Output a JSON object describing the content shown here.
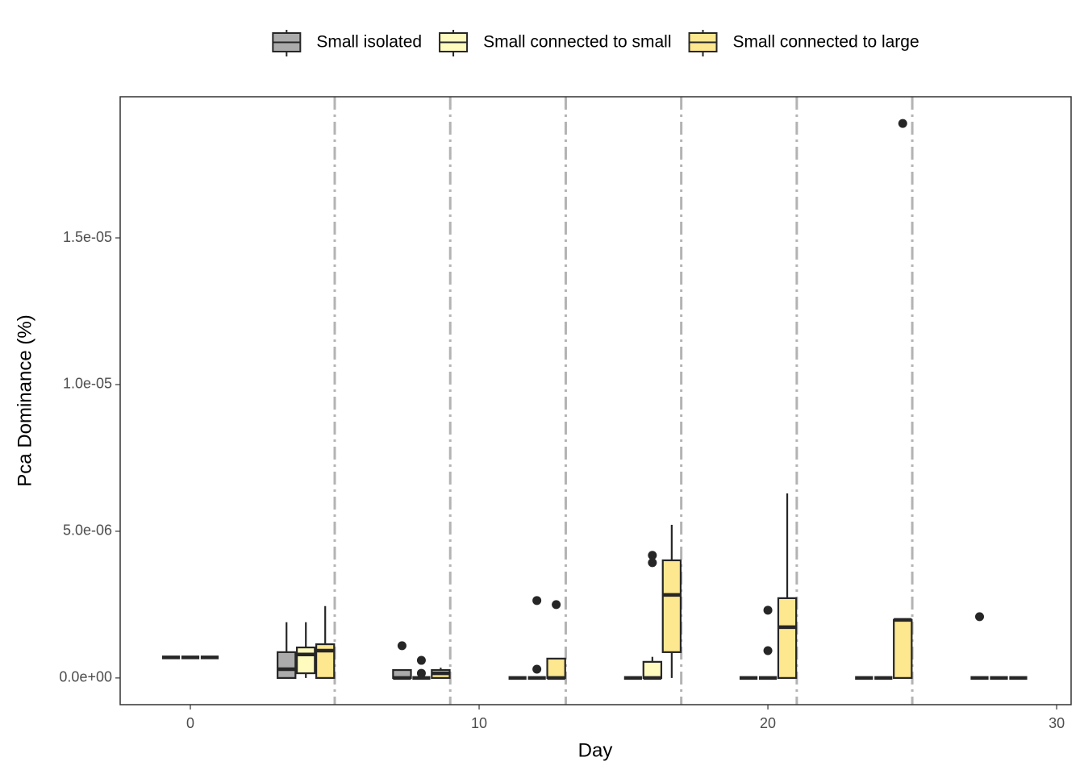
{
  "chart_data": {
    "type": "boxplot",
    "x_label": "Day",
    "y_label": "Pca Dominance (%)",
    "xlim": [
      -2.43,
      30.5
    ],
    "ylim": [
      -9.1e-07,
      1.981e-05
    ],
    "xticks": [
      0,
      10,
      20,
      30
    ],
    "yticks": [
      {
        "value": 0,
        "label": "0.0e+00"
      },
      {
        "value": 5e-06,
        "label": "5.0e-06"
      },
      {
        "value": 1e-05,
        "label": "1.0e-05"
      },
      {
        "value": 1.5e-05,
        "label": "1.5e-05"
      }
    ],
    "vlines": [
      5,
      9,
      13,
      17,
      21,
      25
    ],
    "legend": "top",
    "series": [
      {
        "name": "Small isolated",
        "color": "#ababab",
        "boxes": [
          {
            "x": 0,
            "whislo": 7e-07,
            "q1": 7e-07,
            "med": 7e-07,
            "q3": 7e-07,
            "whishi": 7e-07,
            "fliers": []
          },
          {
            "x": 4,
            "whislo": 0,
            "q1": 0,
            "med": 3e-07,
            "q3": 8.8e-07,
            "whishi": 1.9e-06,
            "fliers": []
          },
          {
            "x": 8,
            "whislo": 0,
            "q1": 0,
            "med": 0,
            "q3": 2.7e-07,
            "whishi": 2.7e-07,
            "fliers": [
              1.1e-06
            ]
          },
          {
            "x": 12,
            "whislo": 0,
            "q1": 0,
            "med": 0,
            "q3": 0,
            "whishi": 0,
            "fliers": []
          },
          {
            "x": 16,
            "whislo": 0,
            "q1": 0,
            "med": 0,
            "q3": 0,
            "whishi": 0,
            "fliers": []
          },
          {
            "x": 20,
            "whislo": 0,
            "q1": 0,
            "med": 0,
            "q3": 0,
            "whishi": 0,
            "fliers": []
          },
          {
            "x": 24,
            "whislo": 0,
            "q1": 0,
            "med": 0,
            "q3": 0,
            "whishi": 0,
            "fliers": []
          },
          {
            "x": 28,
            "whislo": 0,
            "q1": 0,
            "med": 0,
            "q3": 0,
            "whishi": 0,
            "fliers": [
              2.09e-06
            ]
          }
        ]
      },
      {
        "name": "Small connected to small",
        "color": "#fffbbf",
        "boxes": [
          {
            "x": 0,
            "whislo": 7e-07,
            "q1": 7e-07,
            "med": 7e-07,
            "q3": 7e-07,
            "whishi": 7e-07,
            "fliers": []
          },
          {
            "x": 4,
            "whislo": 0,
            "q1": 1.6e-07,
            "med": 8e-07,
            "q3": 1.04e-06,
            "whishi": 1.9e-06,
            "fliers": []
          },
          {
            "x": 8,
            "whislo": 0,
            "q1": 0,
            "med": 0,
            "q3": 0,
            "whishi": 0,
            "fliers": [
              6e-07,
              1.6e-07
            ]
          },
          {
            "x": 12,
            "whislo": 0,
            "q1": 0,
            "med": 0,
            "q3": 0,
            "whishi": 0,
            "fliers": [
              2.64e-06,
              3e-07
            ]
          },
          {
            "x": 16,
            "whislo": 0,
            "q1": 0,
            "med": 0,
            "q3": 5.5e-07,
            "whishi": 7.2e-07,
            "fliers": [
              4.18e-06,
              3.93e-06
            ]
          },
          {
            "x": 20,
            "whislo": 0,
            "q1": 0,
            "med": 0,
            "q3": 0,
            "whishi": 0,
            "fliers": [
              2.31e-06,
              9.3e-07
            ]
          },
          {
            "x": 24,
            "whislo": 0,
            "q1": 0,
            "med": 0,
            "q3": 0,
            "whishi": 0,
            "fliers": []
          },
          {
            "x": 28,
            "whislo": 0,
            "q1": 0,
            "med": 0,
            "q3": 0,
            "whishi": 0,
            "fliers": []
          }
        ]
      },
      {
        "name": "Small connected to large",
        "color": "#fde78f",
        "boxes": [
          {
            "x": 0,
            "whislo": 7e-07,
            "q1": 7e-07,
            "med": 7e-07,
            "q3": 7e-07,
            "whishi": 7e-07,
            "fliers": []
          },
          {
            "x": 4,
            "whislo": 0,
            "q1": 0,
            "med": 9.3e-07,
            "q3": 1.15e-06,
            "whishi": 2.45e-06,
            "fliers": []
          },
          {
            "x": 8,
            "whislo": 0,
            "q1": 0,
            "med": 1.6e-07,
            "q3": 2.7e-07,
            "whishi": 3.5e-07,
            "fliers": []
          },
          {
            "x": 12,
            "whislo": 0,
            "q1": 0,
            "med": 0,
            "q3": 6.6e-07,
            "whishi": 6.6e-07,
            "fliers": [
              2.5e-06
            ]
          },
          {
            "x": 16,
            "whislo": 0,
            "q1": 8.8e-07,
            "med": 2.83e-06,
            "q3": 4.01e-06,
            "whishi": 5.22e-06,
            "fliers": []
          },
          {
            "x": 20,
            "whislo": 0,
            "q1": 0,
            "med": 1.73e-06,
            "q3": 2.72e-06,
            "whishi": 6.29e-06,
            "fliers": []
          },
          {
            "x": 24,
            "whislo": 0,
            "q1": 0,
            "med": 1.98e-06,
            "q3": 1.98e-06,
            "whishi": 1.98e-06,
            "fliers": [
              1.89e-05
            ]
          },
          {
            "x": 28,
            "whislo": 0,
            "q1": 0,
            "med": 0,
            "q3": 0,
            "whishi": 0,
            "fliers": []
          }
        ]
      }
    ]
  }
}
